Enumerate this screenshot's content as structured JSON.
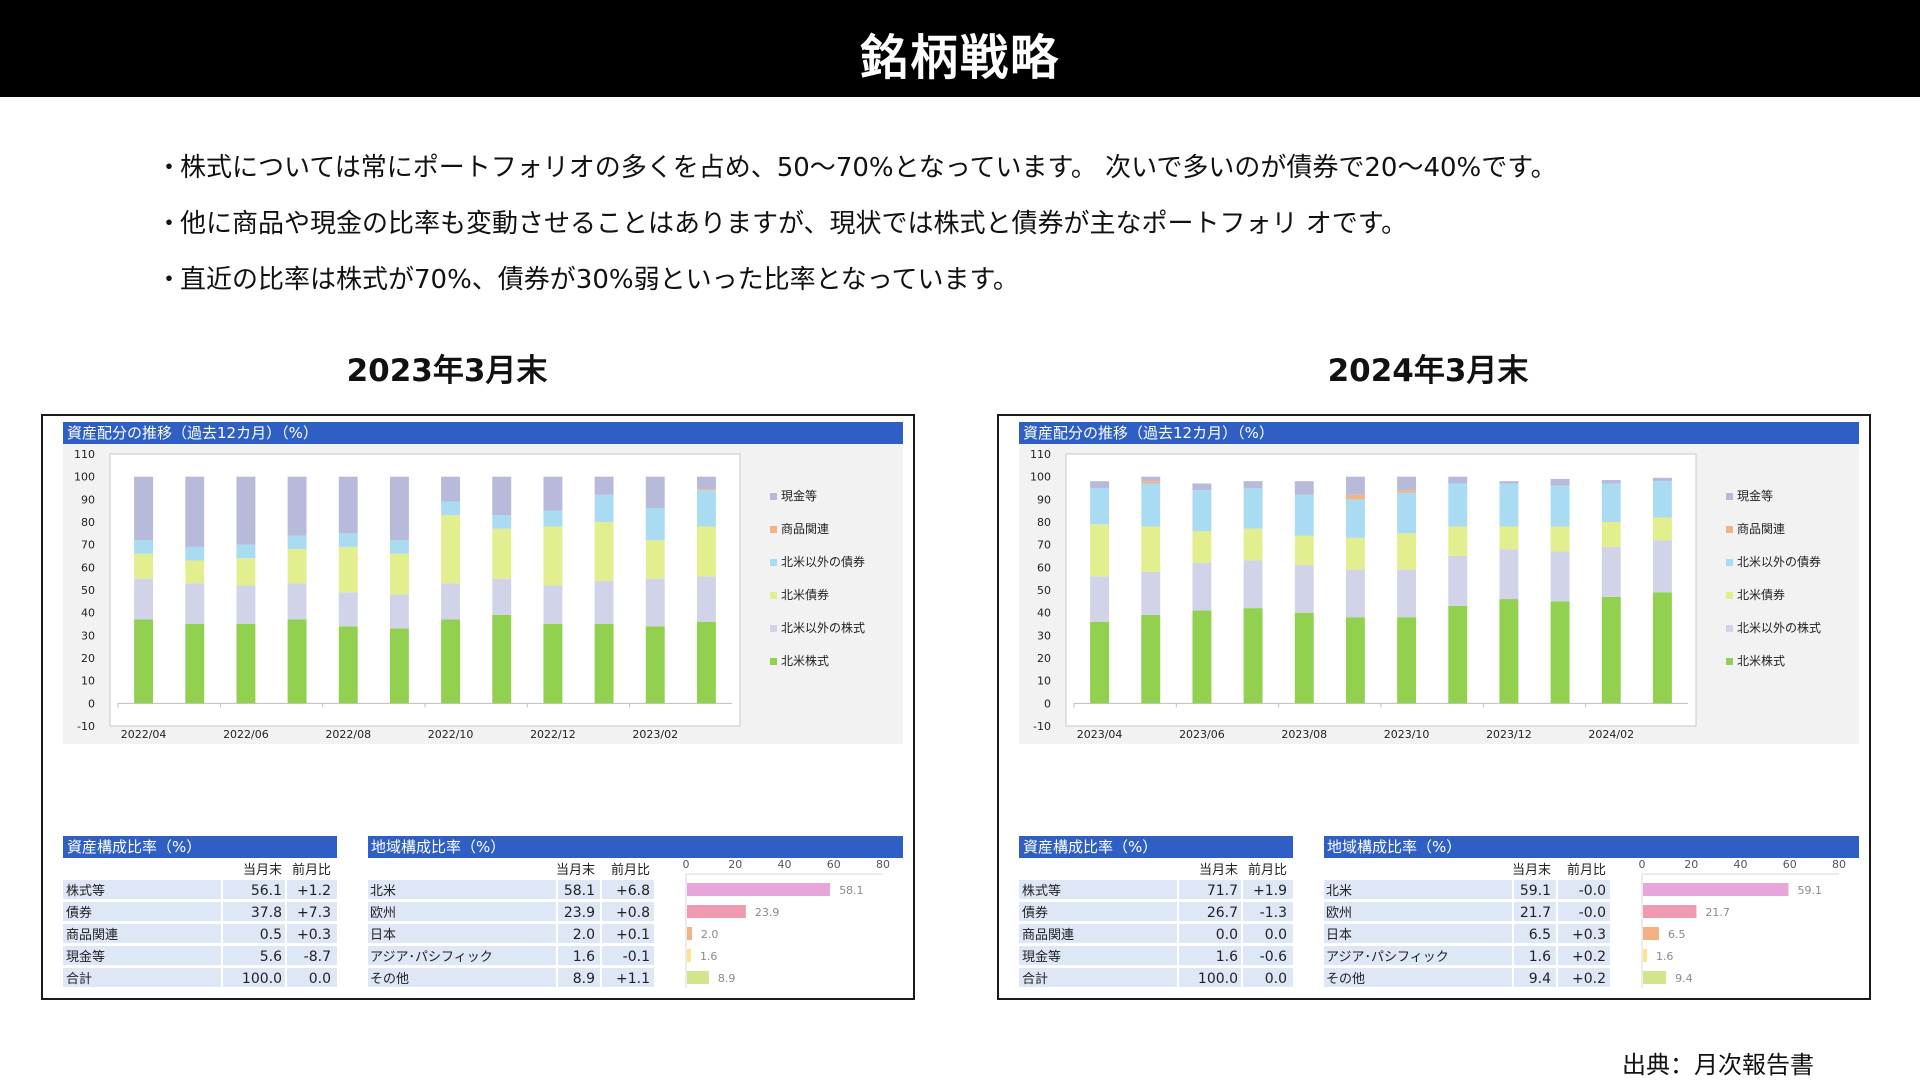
{
  "header": {
    "title": "銘柄戦略"
  },
  "bullets": [
    "株式については常にポートフォリオの多くを占め、50〜70%となっています。 次いで多いのが債券で20〜40%です。",
    "他に商品や現金の比率も変動させることはありますが、現状では株式と債券が主なポートフォリ オです。",
    "直近の比率は株式が70%、債券が30%弱といった比率となっています。"
  ],
  "bullet_marker": "・",
  "source": "出典：月次報告書",
  "colors": {
    "header_bg": "#000000",
    "table_header": "#2f5fc4",
    "row_fill": "#dde7f6",
    "us_stock": "#92d050",
    "non_us_stock": "#d1d4e8",
    "us_bond": "#e3ee8f",
    "non_us_bond": "#a9dcf3",
    "commodity": "#f4b183",
    "cash": "#b8bad9"
  },
  "chart_data": [
    {
      "period_label": "2023年3月末",
      "type": "bar",
      "stacked": true,
      "title": "資産配分の推移（過去12カ月）（%）",
      "ylim": [
        -10,
        110
      ],
      "yticks": [
        -10,
        0,
        10,
        20,
        30,
        40,
        50,
        60,
        70,
        80,
        90,
        100,
        110
      ],
      "x_tick_labels": [
        "2022/04",
        "2022/06",
        "2022/08",
        "2022/10",
        "2022/12",
        "2023/02"
      ],
      "categories": [
        "2022/04",
        "2022/05",
        "2022/06",
        "2022/07",
        "2022/08",
        "2022/09",
        "2022/10",
        "2022/11",
        "2022/12",
        "2023/01",
        "2023/02",
        "2023/03"
      ],
      "grid": false,
      "legend_position": "right",
      "series": [
        {
          "name": "北米株式",
          "color": "#92d050",
          "values": [
            37,
            35,
            35,
            37,
            34,
            33,
            37,
            39,
            35,
            35,
            34,
            36
          ]
        },
        {
          "name": "北米以外の株式",
          "color": "#d1d4e8",
          "values": [
            18,
            18,
            17,
            16,
            15,
            15,
            16,
            16,
            17,
            19,
            21,
            20
          ]
        },
        {
          "name": "北米債券",
          "color": "#e3ee8f",
          "values": [
            11,
            10,
            12,
            15,
            20,
            18,
            30,
            22,
            26,
            26,
            17,
            22
          ]
        },
        {
          "name": "北米以外の債券",
          "color": "#a9dcf3",
          "values": [
            6,
            6,
            6,
            6,
            6,
            6,
            6,
            6,
            7,
            12,
            14,
            16
          ]
        },
        {
          "name": "商品関連",
          "color": "#f4b183",
          "values": [
            0,
            0,
            0,
            0,
            0,
            0,
            0,
            0,
            0,
            0,
            0,
            0.5
          ]
        },
        {
          "name": "現金等",
          "color": "#b8bad9",
          "values": [
            28,
            31,
            30,
            26,
            25,
            28,
            11,
            17,
            15,
            8,
            14,
            5.5
          ]
        }
      ],
      "legend_order": [
        "現金等",
        "商品関連",
        "北米以外の債券",
        "北米債券",
        "北米以外の株式",
        "北米株式"
      ],
      "asset_table": {
        "title": "資産構成比率（%）",
        "columns": [
          "",
          "当月末",
          "前月比"
        ],
        "rows": [
          [
            "株式等",
            "56.1",
            "+1.2"
          ],
          [
            "債券",
            "37.8",
            "+7.3"
          ],
          [
            "商品関連",
            "0.5",
            "+0.3"
          ],
          [
            "現金等",
            "5.6",
            "-8.7"
          ],
          [
            "合計",
            "100.0",
            "0.0"
          ]
        ]
      },
      "region_table": {
        "title": "地域構成比率（%）",
        "columns": [
          "",
          "当月末",
          "前月比"
        ],
        "axis_ticks": [
          "0",
          "20",
          "40",
          "60",
          "80"
        ],
        "xlim": [
          0,
          80
        ],
        "rows": [
          {
            "name": "北米",
            "value": "58.1",
            "change": "+6.8",
            "num": 58.1,
            "color": "#e6a6dc"
          },
          {
            "name": "欧州",
            "value": "23.9",
            "change": "+0.8",
            "num": 23.9,
            "color": "#ef9aae"
          },
          {
            "name": "日本",
            "value": "2.0",
            "change": "+0.1",
            "num": 2.0,
            "color": "#f4b183"
          },
          {
            "name": "アジア･パシフィック",
            "value": "1.6",
            "change": "-0.1",
            "num": 1.6,
            "color": "#ffe38a"
          },
          {
            "name": "その他",
            "value": "8.9",
            "change": "+1.1",
            "num": 8.9,
            "color": "#d3e58c"
          }
        ]
      }
    },
    {
      "period_label": "2024年3月末",
      "type": "bar",
      "stacked": true,
      "title": "資産配分の推移（過去12カ月）（%）",
      "ylim": [
        -10,
        110
      ],
      "yticks": [
        -10,
        0,
        10,
        20,
        30,
        40,
        50,
        60,
        70,
        80,
        90,
        100,
        110
      ],
      "x_tick_labels": [
        "2023/04",
        "2023/06",
        "2023/08",
        "2023/10",
        "2023/12",
        "2024/02"
      ],
      "categories": [
        "2023/04",
        "2023/05",
        "2023/06",
        "2023/07",
        "2023/08",
        "2023/09",
        "2023/10",
        "2023/11",
        "2023/12",
        "2024/01",
        "2024/02",
        "2024/03"
      ],
      "grid": false,
      "legend_position": "right",
      "series": [
        {
          "name": "北米株式",
          "color": "#92d050",
          "values": [
            36,
            39,
            41,
            42,
            40,
            38,
            38,
            43,
            46,
            45,
            47,
            49
          ]
        },
        {
          "name": "北米以外の株式",
          "color": "#d1d4e8",
          "values": [
            20,
            19,
            21,
            21,
            21,
            21,
            21,
            22,
            22,
            22,
            22,
            23
          ]
        },
        {
          "name": "北米債券",
          "color": "#e3ee8f",
          "values": [
            23,
            20,
            14,
            14,
            13,
            14,
            16,
            13,
            10,
            11,
            11,
            10
          ]
        },
        {
          "name": "北米以外の債券",
          "color": "#a9dcf3",
          "values": [
            16,
            19,
            18,
            18,
            18,
            17,
            18,
            19,
            19,
            18,
            17,
            16
          ]
        },
        {
          "name": "商品関連",
          "color": "#f4b183",
          "values": [
            0,
            1,
            0,
            0,
            0,
            2,
            1,
            0,
            0,
            0,
            0,
            0
          ]
        },
        {
          "name": "現金等",
          "color": "#b8bad9",
          "values": [
            3,
            2,
            3,
            3,
            6,
            8,
            6,
            3,
            1,
            3,
            1.5,
            1.5
          ]
        }
      ],
      "legend_order": [
        "現金等",
        "商品関連",
        "北米以外の債券",
        "北米債券",
        "北米以外の株式",
        "北米株式"
      ],
      "asset_table": {
        "title": "資産構成比率（%）",
        "columns": [
          "",
          "当月末",
          "前月比"
        ],
        "rows": [
          [
            "株式等",
            "71.7",
            "+1.9"
          ],
          [
            "債券",
            "26.7",
            "-1.3"
          ],
          [
            "商品関連",
            "0.0",
            "0.0"
          ],
          [
            "現金等",
            "1.6",
            "-0.6"
          ],
          [
            "合計",
            "100.0",
            "0.0"
          ]
        ]
      },
      "region_table": {
        "title": "地域構成比率（%）",
        "columns": [
          "",
          "当月末",
          "前月比"
        ],
        "axis_ticks": [
          "0",
          "20",
          "40",
          "60",
          "80"
        ],
        "xlim": [
          0,
          80
        ],
        "rows": [
          {
            "name": "北米",
            "value": "59.1",
            "change": "-0.0",
            "num": 59.1,
            "color": "#e6a6dc"
          },
          {
            "name": "欧州",
            "value": "21.7",
            "change": "-0.0",
            "num": 21.7,
            "color": "#ef9aae"
          },
          {
            "name": "日本",
            "value": "6.5",
            "change": "+0.3",
            "num": 6.5,
            "color": "#f4b183"
          },
          {
            "name": "アジア･パシフィック",
            "value": "1.6",
            "change": "+0.2",
            "num": 1.6,
            "color": "#ffe38a"
          },
          {
            "name": "その他",
            "value": "9.4",
            "change": "+0.2",
            "num": 9.4,
            "color": "#d3e58c"
          }
        ]
      }
    }
  ]
}
